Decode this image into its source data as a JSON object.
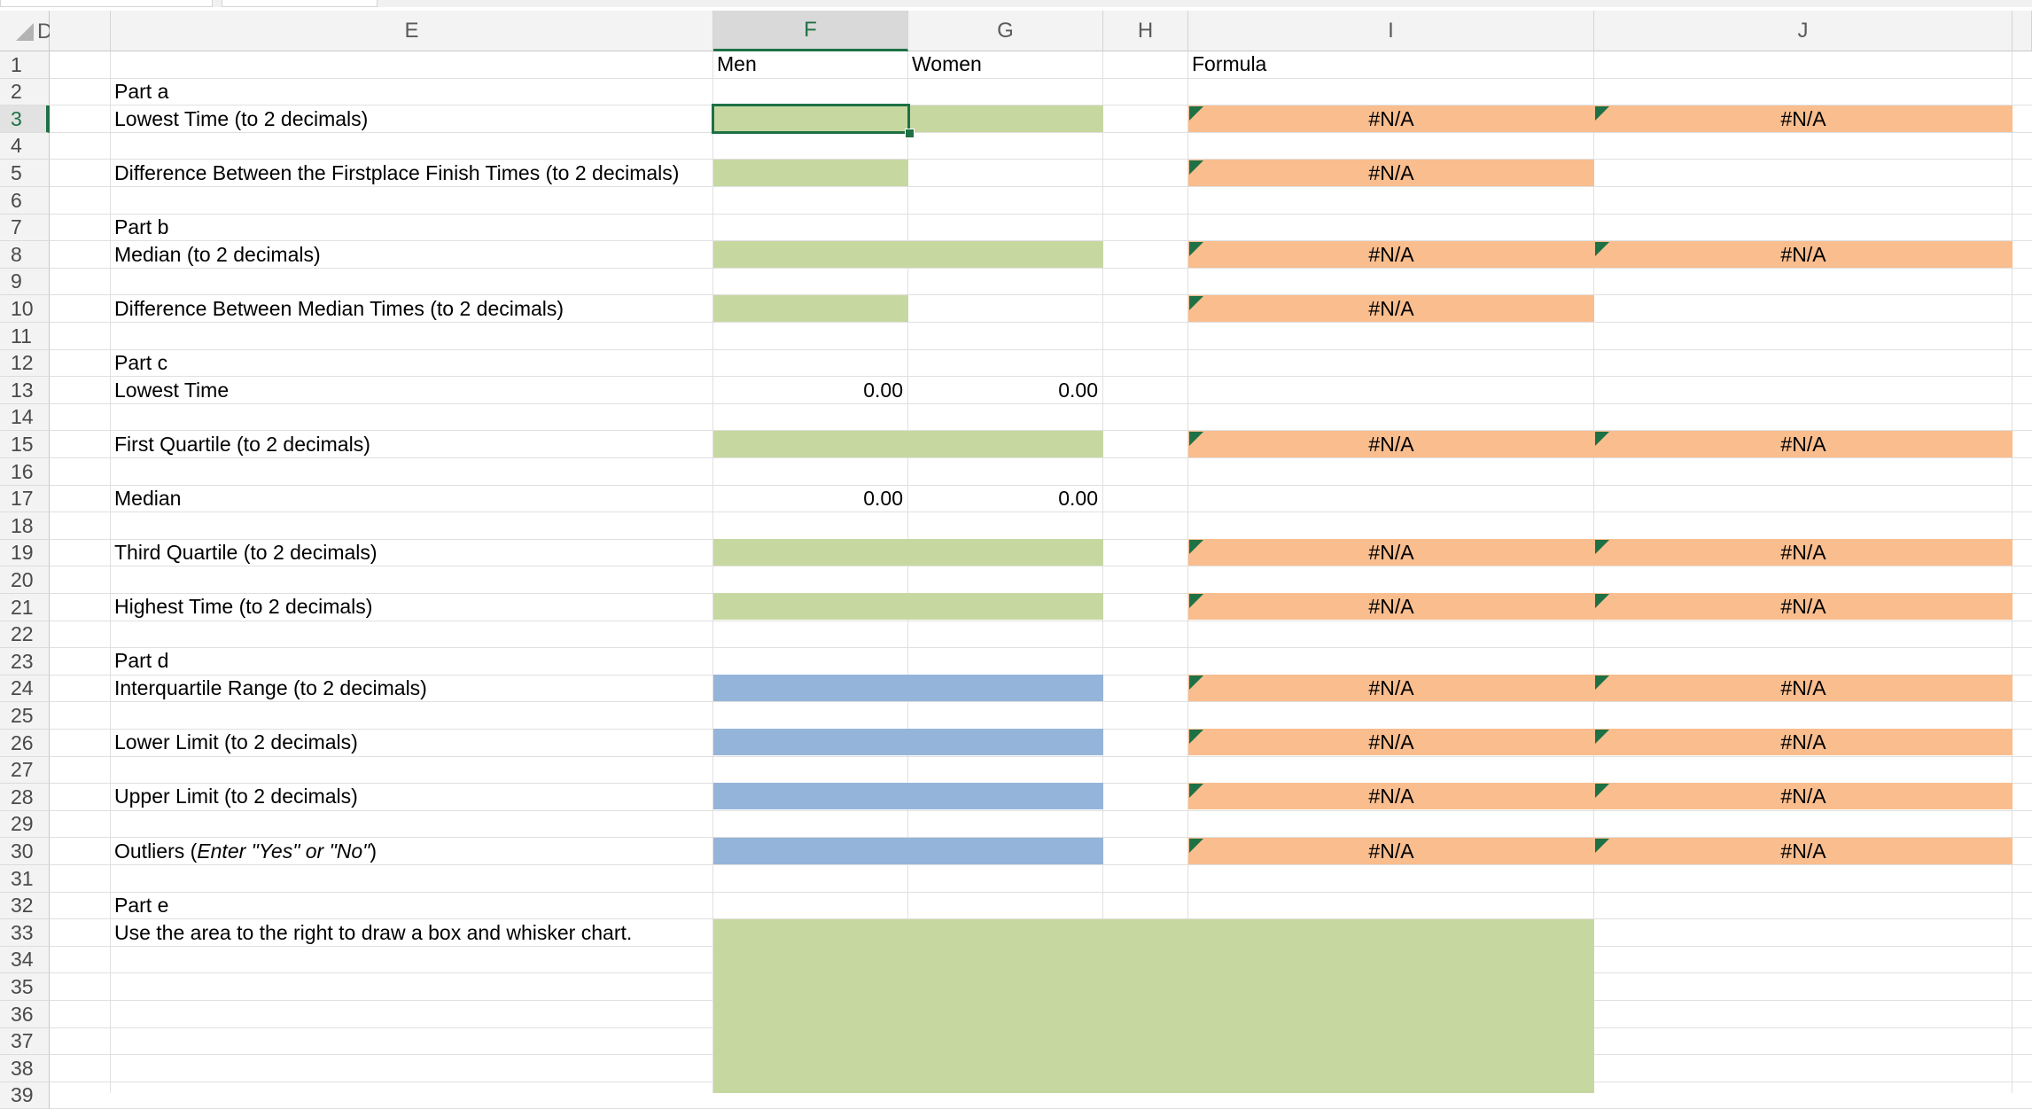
{
  "columns": [
    "D",
    "E",
    "F",
    "G",
    "H",
    "I",
    "J"
  ],
  "rows": [
    "1",
    "2",
    "3",
    "4",
    "5",
    "6",
    "7",
    "8",
    "9",
    "10",
    "11",
    "12",
    "13",
    "14",
    "15",
    "16",
    "17",
    "18",
    "19",
    "20",
    "21",
    "22",
    "23",
    "24",
    "25",
    "26",
    "27",
    "28",
    "29",
    "30",
    "31",
    "32",
    "33",
    "34",
    "35",
    "36",
    "37",
    "38",
    "39"
  ],
  "selected_cell": "F3",
  "headers": {
    "men": "Men",
    "women": "Women",
    "formula": "Formula"
  },
  "labels": {
    "part_a": "Part a",
    "lowest_time": "Lowest Time (to 2 decimals)",
    "difference_first": "Difference Between the Firstplace Finish Times (to 2 decimals)",
    "part_b": "Part b",
    "median_2": "Median (to 2 decimals)",
    "difference_median": "Difference Between Median Times (to 2 decimals)",
    "part_c": "Part c",
    "lowest_time_c": "Lowest Time",
    "first_quartile": "First Quartile (to 2 decimals)",
    "median_c": "Median",
    "third_quartile": "Third Quartile (to 2 decimals)",
    "highest_time": "Highest Time (to 2 decimals)",
    "part_d": "Part d",
    "iqr": "Interquartile Range (to 2 decimals)",
    "lower_limit": "Lower Limit (to 2 decimals)",
    "upper_limit": "Upper Limit (to 2 decimals)",
    "outliers_prefix": "Outliers (",
    "outliers_italic": "Enter \"Yes\" or \"No\"",
    "outliers_suffix": ")",
    "part_e": "Part e",
    "draw_chart": "Use the area to the right to draw a box and whisker chart."
  },
  "values": {
    "r13_men": "0.00",
    "r13_women": "0.00",
    "r17_men": "0.00",
    "r17_women": "0.00"
  },
  "formula_cells": {
    "r3_i": "#N/A",
    "r3_j": "#N/A",
    "r5_i": "#N/A",
    "r8_i": "#N/A",
    "r8_j": "#N/A",
    "r10_i": "#N/A",
    "r15_i": "#N/A",
    "r15_j": "#N/A",
    "r19_i": "#N/A",
    "r19_j": "#N/A",
    "r21_i": "#N/A",
    "r21_j": "#N/A",
    "r24_i": "#N/A",
    "r24_j": "#N/A",
    "r26_i": "#N/A",
    "r26_j": "#N/A",
    "r28_i": "#N/A",
    "r28_j": "#N/A",
    "r30_i": "#N/A",
    "r30_j": "#N/A"
  },
  "colors": {
    "input_green": "#c6d8a0",
    "formula_orange": "#f9bd8e",
    "input_blue": "#95b4d9",
    "selection_green": "#1e7145"
  }
}
